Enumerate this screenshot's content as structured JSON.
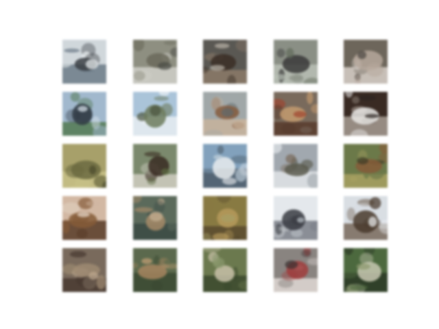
{
  "grid": {
    "rows": 5,
    "cols": 5,
    "tiles": [
      {
        "subject": "blurry-ship-icon",
        "colors": [
          "#cfd7dc",
          "#3a3f45",
          "#6b7b88",
          "#eef2f4"
        ]
      },
      {
        "subject": "blurry-ship-icon",
        "colors": [
          "#8e8f80",
          "#6b6a5a",
          "#d0d0c8",
          "#4a4b44"
        ]
      },
      {
        "subject": "blurry-horse-icon",
        "colors": [
          "#5a5852",
          "#3c2e24",
          "#8d7a66",
          "#b9b2a6"
        ]
      },
      {
        "subject": "blurry-bird-icon",
        "colors": [
          "#8a8f84",
          "#3a3a3a",
          "#b8c0b4",
          "#5f6a5a"
        ]
      },
      {
        "subject": "blurry-animal-icon",
        "colors": [
          "#6e665a",
          "#b7a89a",
          "#d8cfc7",
          "#4b4640"
        ]
      },
      {
        "subject": "blurry-bird-icon",
        "colors": [
          "#9fb8d0",
          "#2f3a44",
          "#4f7a4f",
          "#d9e3ee"
        ]
      },
      {
        "subject": "blurry-ship-icon",
        "colors": [
          "#a8c4dc",
          "#6c7c5a",
          "#e6edf2",
          "#48523a"
        ]
      },
      {
        "subject": "blurry-animal-icon",
        "colors": [
          "#9fa7a8",
          "#8a5a3a",
          "#c9b39a",
          "#5e6a6c"
        ]
      },
      {
        "subject": "blurry-frog-icon",
        "colors": [
          "#7a6a5a",
          "#c89a6a",
          "#5a3a2a",
          "#a8412a"
        ]
      },
      {
        "subject": "blurry-dog-icon",
        "colors": [
          "#3a2a22",
          "#e8e6e4",
          "#a89c92",
          "#2a2220"
        ]
      },
      {
        "subject": "blurry-deer-icon",
        "colors": [
          "#a8a064",
          "#6c6a3c",
          "#c8c080",
          "#4a4a2a"
        ]
      },
      {
        "subject": "blurry-horse-icon",
        "colors": [
          "#7a8a6a",
          "#3a2a20",
          "#d0ccc0",
          "#5a6a3c"
        ]
      },
      {
        "subject": "blurry-ship-icon",
        "colors": [
          "#7fa2c0",
          "#e8ecef",
          "#4a5a6a",
          "#c0d0dc"
        ]
      },
      {
        "subject": "blurry-plane-icon",
        "colors": [
          "#a0a8b0",
          "#5a5a4c",
          "#e0e4e8",
          "#7a6a58"
        ]
      },
      {
        "subject": "blurry-dog-icon",
        "colors": [
          "#6a7a44",
          "#8a5a34",
          "#a8a05a",
          "#3c3a24"
        ]
      },
      {
        "subject": "blurry-cat-icon",
        "colors": [
          "#d4b8a0",
          "#8a5a34",
          "#5a3a24",
          "#e8d8c8"
        ]
      },
      {
        "subject": "blurry-deer-icon",
        "colors": [
          "#5a6a5a",
          "#a88a64",
          "#3a4a44",
          "#c8b090"
        ]
      },
      {
        "subject": "blurry-animal-icon",
        "colors": [
          "#8a7a3c",
          "#b89a54",
          "#5a4a2a",
          "#a8a060"
        ]
      },
      {
        "subject": "blurry-car-icon",
        "colors": [
          "#e4e8ec",
          "#3a3c44",
          "#7a7e88",
          "#b8c0c8"
        ]
      },
      {
        "subject": "blurry-plane-icon",
        "colors": [
          "#d8dee4",
          "#4a3a2a",
          "#7a6a5a",
          "#f0f2f4"
        ]
      },
      {
        "subject": "blurry-animal-icon",
        "colors": [
          "#7a6a5a",
          "#a08a6e",
          "#4a3a30",
          "#c0a88c"
        ]
      },
      {
        "subject": "blurry-dog-icon",
        "colors": [
          "#5a6a4a",
          "#a8845a",
          "#3a4a30",
          "#c8a070"
        ]
      },
      {
        "subject": "blurry-bird-icon",
        "colors": [
          "#6a7a4a",
          "#c8c0a4",
          "#3a4a2a",
          "#8a9a6a"
        ]
      },
      {
        "subject": "blurry-car-icon",
        "colors": [
          "#8a8480",
          "#a83a3a",
          "#e0d8d4",
          "#3a3030"
        ]
      },
      {
        "subject": "blurry-frog-icon",
        "colors": [
          "#4a6a3a",
          "#c8c8b0",
          "#2a3a24",
          "#8a9a6a"
        ]
      }
    ]
  }
}
